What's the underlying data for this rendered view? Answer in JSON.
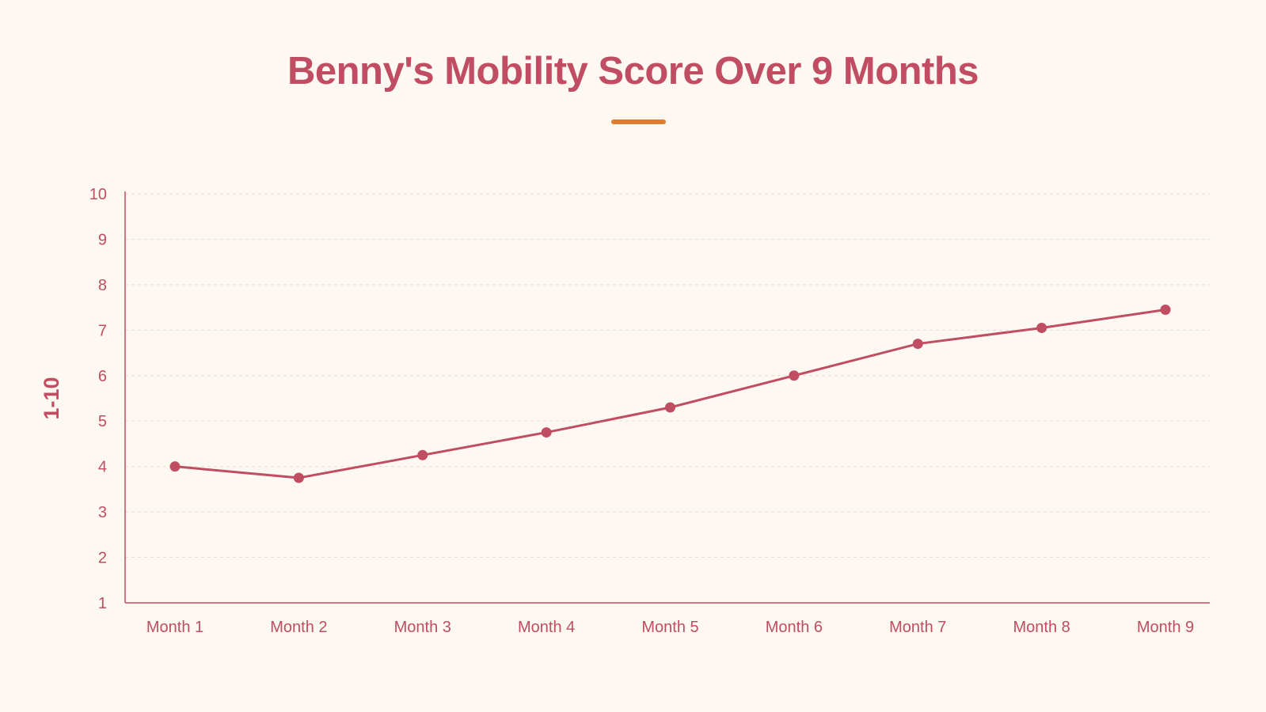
{
  "colors": {
    "background": "#fdf8f1",
    "primary": "#c04d62",
    "accent": "#e07c2f",
    "grid": "#e6ddd2"
  },
  "chart_data": {
    "type": "line",
    "title": "Benny's Mobility Score Over 9 Months",
    "xlabel": "",
    "ylabel": "1-10",
    "categories": [
      "Month 1",
      "Month 2",
      "Month 3",
      "Month 4",
      "Month 5",
      "Month 6",
      "Month 7",
      "Month 8",
      "Month 9"
    ],
    "series": [
      {
        "values": [
          4.0,
          3.75,
          4.25,
          4.75,
          5.3,
          6.0,
          6.7,
          7.05,
          7.45
        ]
      }
    ],
    "ylim": [
      1,
      10
    ],
    "yticks": [
      "1",
      "2",
      "3",
      "4",
      "5",
      "6",
      "7",
      "8",
      "9",
      "10"
    ],
    "grid": true,
    "legend": "none"
  }
}
